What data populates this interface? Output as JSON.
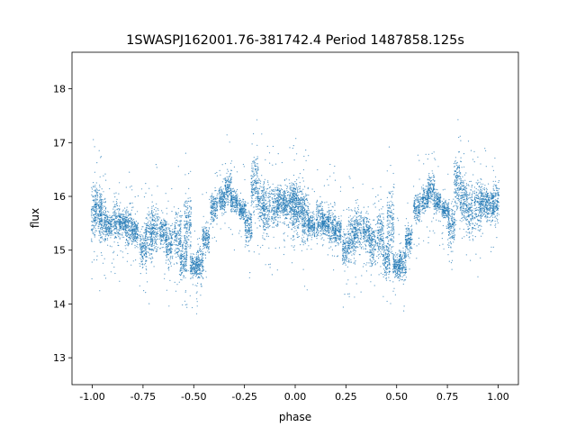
{
  "chart_data": {
    "type": "scatter",
    "title": "1SWASPJ162001.76-381742.4 Period 1487858.125s",
    "xlabel": "phase",
    "ylabel": "flux",
    "xlim": [
      -1.1,
      1.1
    ],
    "ylim": [
      12.5,
      18.68
    ],
    "xticks": [
      "-1.00",
      "-0.75",
      "-0.50",
      "-0.25",
      "0.00",
      "0.25",
      "0.50",
      "0.75",
      "1.00"
    ],
    "xtick_values": [
      -1,
      -0.75,
      -0.5,
      -0.25,
      0,
      0.25,
      0.5,
      0.75,
      1
    ],
    "yticks": [
      "13",
      "14",
      "15",
      "16",
      "17",
      "18"
    ],
    "ytick_values": [
      13,
      14,
      15,
      16,
      17,
      18
    ],
    "grid": false,
    "marker_color": "#1f77b4",
    "folded_copy_at_phase_minus_1": true,
    "clusters_phase_flux_min_max": [
      [
        0.0,
        15.0,
        16.5
      ],
      [
        0.03,
        15.2,
        16.4
      ],
      [
        0.05,
        14.8,
        16.3
      ],
      [
        0.08,
        15.1,
        15.8
      ],
      [
        0.12,
        15.0,
        16.1
      ],
      [
        0.15,
        15.2,
        15.8
      ],
      [
        0.18,
        14.9,
        16.0
      ],
      [
        0.21,
        15.0,
        15.7
      ],
      [
        0.25,
        14.5,
        15.6
      ],
      [
        0.28,
        14.6,
        15.9
      ],
      [
        0.31,
        14.8,
        16.0
      ],
      [
        0.35,
        14.9,
        15.8
      ],
      [
        0.38,
        14.5,
        15.7
      ],
      [
        0.42,
        14.6,
        16.0
      ],
      [
        0.45,
        14.3,
        15.4
      ],
      [
        0.47,
        14.6,
        16.4
      ],
      [
        0.5,
        14.4,
        15.0
      ],
      [
        0.53,
        14.3,
        15.2
      ],
      [
        0.56,
        14.8,
        15.6
      ],
      [
        0.6,
        15.4,
        16.2
      ],
      [
        0.64,
        15.6,
        16.3
      ],
      [
        0.67,
        15.7,
        16.6
      ],
      [
        0.7,
        15.6,
        16.2
      ],
      [
        0.74,
        15.5,
        16.0
      ],
      [
        0.77,
        14.9,
        16.0
      ],
      [
        0.8,
        15.5,
        17.0
      ],
      [
        0.83,
        15.3,
        16.6
      ],
      [
        0.86,
        15.0,
        16.5
      ],
      [
        0.9,
        15.1,
        16.5
      ],
      [
        0.93,
        15.5,
        16.3
      ],
      [
        0.96,
        15.4,
        16.3
      ],
      [
        0.99,
        15.3,
        16.5
      ]
    ]
  }
}
